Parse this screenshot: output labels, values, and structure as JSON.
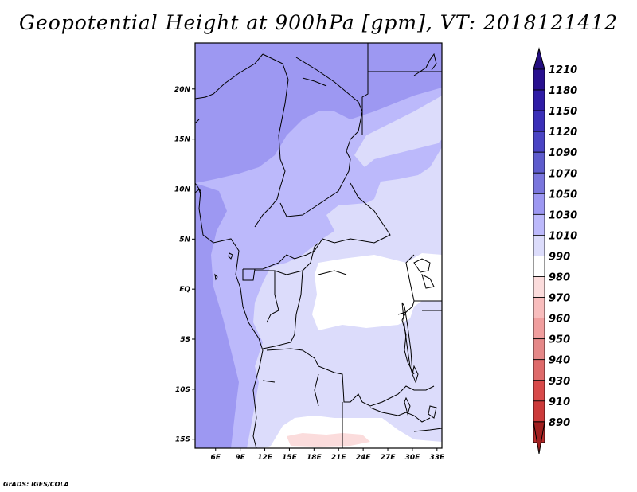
{
  "title": "Geopotential Height at 900hPa [gpm], VT: 2018121412",
  "credit": "GrADS: IGES/COLA",
  "map": {
    "lat_ticks": [
      {
        "value": 20,
        "label": "20N"
      },
      {
        "value": 15,
        "label": "15N"
      },
      {
        "value": 10,
        "label": "10N"
      },
      {
        "value": 5,
        "label": "5N"
      },
      {
        "value": 0,
        "label": "EQ"
      },
      {
        "value": -5,
        "label": "5S"
      },
      {
        "value": -10,
        "label": "10S"
      },
      {
        "value": -15,
        "label": "15S"
      }
    ],
    "lon_ticks": [
      {
        "value": 6,
        "label": "6E"
      },
      {
        "value": 9,
        "label": "9E"
      },
      {
        "value": 12,
        "label": "12E"
      },
      {
        "value": 15,
        "label": "15E"
      },
      {
        "value": 18,
        "label": "18E"
      },
      {
        "value": 21,
        "label": "21E"
      },
      {
        "value": 24,
        "label": "24E"
      },
      {
        "value": 27,
        "label": "27E"
      },
      {
        "value": 30,
        "label": "30E"
      },
      {
        "value": 33,
        "label": "33E"
      }
    ]
  },
  "colorbar": {
    "levels": [
      {
        "label": "1210",
        "color": "#28108f"
      },
      {
        "label": "1180",
        "color": "#2f1ca6"
      },
      {
        "label": "1150",
        "color": "#3a2fb8"
      },
      {
        "label": "1120",
        "color": "#4a44c4"
      },
      {
        "label": "1090",
        "color": "#5e5ccd"
      },
      {
        "label": "1070",
        "color": "#7a76dd"
      },
      {
        "label": "1050",
        "color": "#9d98f2"
      },
      {
        "label": "1030",
        "color": "#bcb9fb"
      },
      {
        "label": "1010",
        "color": "#dcdcfb"
      },
      {
        "label": "990",
        "color": "#ffffff"
      },
      {
        "label": "980",
        "color": "#fbdcdc"
      },
      {
        "label": "970",
        "color": "#f8bdbd"
      },
      {
        "label": "960",
        "color": "#f09e9e"
      },
      {
        "label": "950",
        "color": "#e58888"
      },
      {
        "label": "940",
        "color": "#de6a6a"
      },
      {
        "label": "930",
        "color": "#d84a4a"
      },
      {
        "label": "910",
        "color": "#cc3a3a"
      },
      {
        "label": "890",
        "color": "#b62a2a"
      }
    ],
    "bottom_color": "#a01f1f",
    "top_color": "#240e80"
  },
  "colors": {
    "very_high": "#9d98f2",
    "high": "#bcb9fb",
    "mid": "#dcdcfb",
    "low": "#ffffff",
    "pink": "#fbdcdc"
  }
}
